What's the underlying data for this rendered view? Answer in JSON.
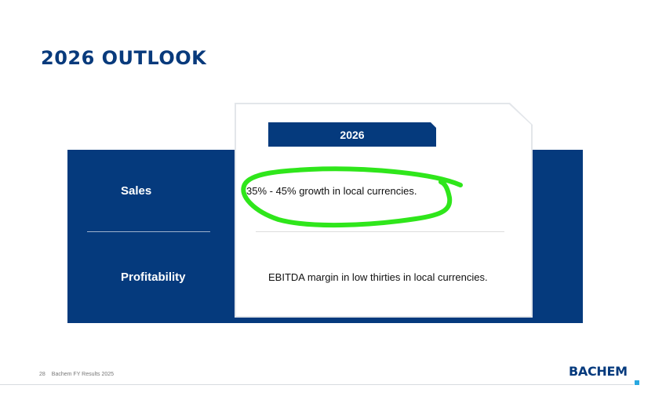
{
  "slide": {
    "title": "2026 OUTLOOK",
    "column_header": "2026",
    "rows": [
      {
        "label": "Sales",
        "value": "35% - 45% growth in local currencies."
      },
      {
        "label": "Profitability",
        "value": "EBITDA margin in low thirties in local currencies."
      }
    ]
  },
  "annotation": {
    "color": "#2fe61b",
    "shape": "hand-drawn-ellipse"
  },
  "footer": {
    "page_number": "28",
    "caption": "Bachem FY Results 2025",
    "logo": "BACHEM"
  },
  "colors": {
    "brand_blue": "#053a7d",
    "accent_cyan": "#29a8e0"
  }
}
